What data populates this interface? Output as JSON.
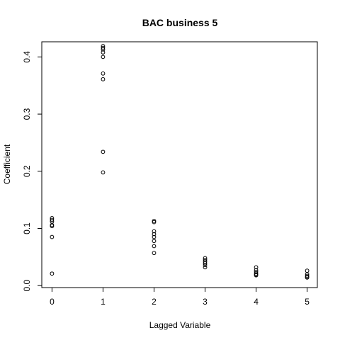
{
  "chart_data": {
    "type": "scatter",
    "title": "BAC business 5",
    "xlabel": "Lagged Variable",
    "ylabel": "Coefficient",
    "xlim": [
      -0.2,
      5.2
    ],
    "ylim": [
      -0.0035,
      0.4265
    ],
    "x_ticks": [
      0,
      1,
      2,
      3,
      4,
      5
    ],
    "y_ticks": [
      0.0,
      0.1,
      0.2,
      0.3,
      0.4
    ],
    "y_tick_labels": [
      "0.0",
      "0.1",
      "0.2",
      "0.3",
      "0.4"
    ],
    "grid": false,
    "points": [
      {
        "x": 0,
        "y": 0.118
      },
      {
        "x": 0,
        "y": 0.115
      },
      {
        "x": 0,
        "y": 0.112
      },
      {
        "x": 0,
        "y": 0.106
      },
      {
        "x": 0,
        "y": 0.104
      },
      {
        "x": 0,
        "y": 0.085
      },
      {
        "x": 0,
        "y": 0.021
      },
      {
        "x": 1,
        "y": 0.419
      },
      {
        "x": 1,
        "y": 0.416
      },
      {
        "x": 1,
        "y": 0.413
      },
      {
        "x": 1,
        "y": 0.408
      },
      {
        "x": 1,
        "y": 0.4
      },
      {
        "x": 1,
        "y": 0.371
      },
      {
        "x": 1,
        "y": 0.361
      },
      {
        "x": 1,
        "y": 0.234
      },
      {
        "x": 1,
        "y": 0.198
      },
      {
        "x": 2,
        "y": 0.113
      },
      {
        "x": 2,
        "y": 0.111
      },
      {
        "x": 2,
        "y": 0.095
      },
      {
        "x": 2,
        "y": 0.09
      },
      {
        "x": 2,
        "y": 0.085
      },
      {
        "x": 2,
        "y": 0.078
      },
      {
        "x": 2,
        "y": 0.069
      },
      {
        "x": 2,
        "y": 0.057
      },
      {
        "x": 3,
        "y": 0.048
      },
      {
        "x": 3,
        "y": 0.045
      },
      {
        "x": 3,
        "y": 0.042
      },
      {
        "x": 3,
        "y": 0.039
      },
      {
        "x": 3,
        "y": 0.036
      },
      {
        "x": 3,
        "y": 0.032
      },
      {
        "x": 4,
        "y": 0.032
      },
      {
        "x": 4,
        "y": 0.027
      },
      {
        "x": 4,
        "y": 0.024
      },
      {
        "x": 4,
        "y": 0.021
      },
      {
        "x": 4,
        "y": 0.019
      },
      {
        "x": 4,
        "y": 0.018
      },
      {
        "x": 5,
        "y": 0.026
      },
      {
        "x": 5,
        "y": 0.02
      },
      {
        "x": 5,
        "y": 0.017
      },
      {
        "x": 5,
        "y": 0.015
      },
      {
        "x": 5,
        "y": 0.014
      }
    ]
  }
}
